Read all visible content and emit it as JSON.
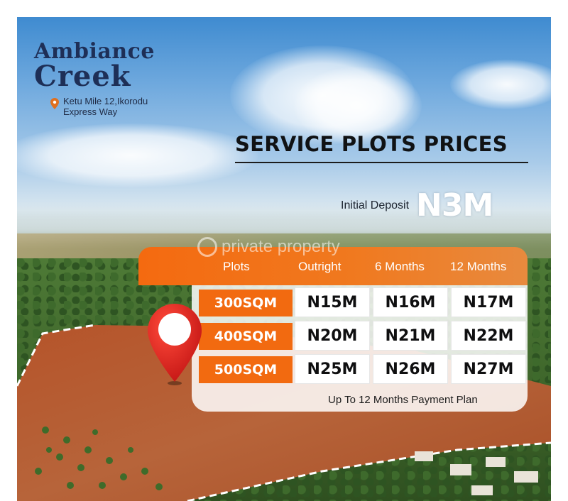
{
  "brand": {
    "line1": "Ambiance",
    "line2": "Creek",
    "location": "Ketu Mile 12,Ikorodu Express Way",
    "pin_icon": "location-pin-icon"
  },
  "title": "SERVICE PLOTS PRICES",
  "deposit": {
    "label": "Initial Deposit",
    "value": "N3M"
  },
  "watermark": "private property",
  "table": {
    "headers": [
      "Plots",
      "Outright",
      "6 Months",
      "12 Months"
    ],
    "rows": [
      {
        "size": "300SQM",
        "prices": [
          "N15M",
          "N16M",
          "N17M"
        ]
      },
      {
        "size": "400SQM",
        "prices": [
          "N20M",
          "N21M",
          "N22M"
        ]
      },
      {
        "size": "500SQM",
        "prices": [
          "N25M",
          "N26M",
          "N27M"
        ]
      }
    ]
  },
  "payment_plan": "Up To 12 Months Payment Plan",
  "colors": {
    "accent_orange": "#f26a10",
    "navy": "#1e2f57",
    "pin_red": "#d81f1f"
  }
}
